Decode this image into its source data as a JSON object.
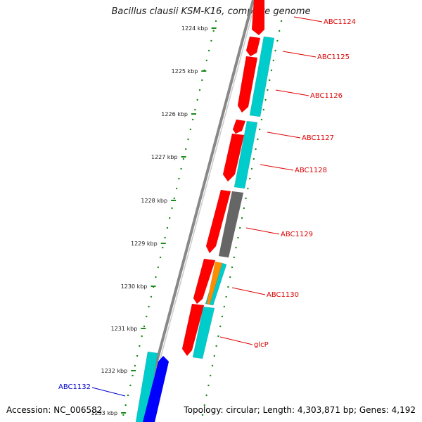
{
  "title": "Bacillus clausii KSM-K16, complete genome",
  "accession": "Accession: NC_006582",
  "summary": "Topology: circular; Length: 4,303,871 bp; Genes: 4,192",
  "colors": {
    "forward": "#ff0000",
    "cds": "#00cccc",
    "reverse": "#0000ff",
    "gray": "#666666",
    "orange": "#ff8c00",
    "backbone": "#888888",
    "ticks": "#1a8a1a",
    "label_red": "#dd0000",
    "label_blue": "#0000cc"
  },
  "ticks": [
    "1224 kbp",
    "1225 kbp",
    "1226 kbp",
    "1227 kbp",
    "1228 kbp",
    "1229 kbp",
    "1230 kbp",
    "1231 kbp",
    "1232 kbp",
    "1233 kbp"
  ],
  "genes": [
    {
      "name": "ABC1124",
      "color": "label_red"
    },
    {
      "name": "ABC1125",
      "color": "label_red"
    },
    {
      "name": "ABC1126",
      "color": "label_red"
    },
    {
      "name": "ABC1127",
      "color": "label_red"
    },
    {
      "name": "ABC1128",
      "color": "label_red"
    },
    {
      "name": "ABC1129",
      "color": "label_red"
    },
    {
      "name": "ABC1130",
      "color": "label_red"
    },
    {
      "name": "glcP",
      "color": "label_red"
    },
    {
      "name": "ABC1132",
      "color": "label_blue"
    }
  ]
}
